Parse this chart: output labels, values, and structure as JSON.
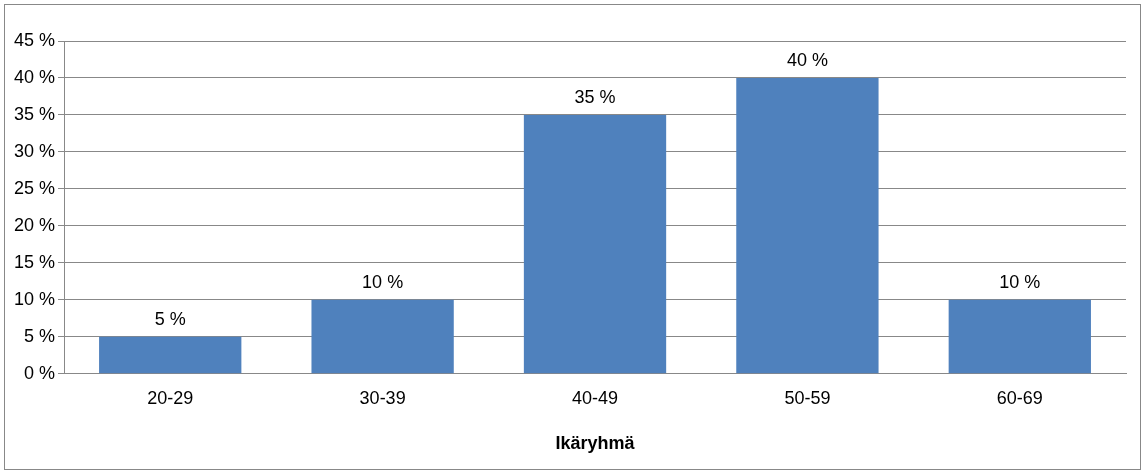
{
  "chart_data": {
    "type": "bar",
    "xlabel": "Ikäryhmä",
    "categories": [
      "20-29",
      "30-39",
      "40-49",
      "50-59",
      "60-69"
    ],
    "values": [
      5,
      10,
      35,
      40,
      10
    ],
    "value_labels": [
      "5 %",
      "10 %",
      "35 %",
      "40 %",
      "10 %"
    ],
    "color": "#4f81bd",
    "ylim": [
      0,
      45
    ],
    "yticks": [
      {
        "value": 0,
        "label": "0 %"
      },
      {
        "value": 5,
        "label": "5 %"
      },
      {
        "value": 10,
        "label": "10 %"
      },
      {
        "value": 15,
        "label": "15 %"
      },
      {
        "value": 20,
        "label": "20 %"
      },
      {
        "value": 25,
        "label": "25 %"
      },
      {
        "value": 30,
        "label": "30 %"
      },
      {
        "value": 35,
        "label": "35 %"
      },
      {
        "value": 40,
        "label": "40 %"
      },
      {
        "value": 45,
        "label": "45 %"
      }
    ],
    "grid": "y",
    "legend": false
  }
}
